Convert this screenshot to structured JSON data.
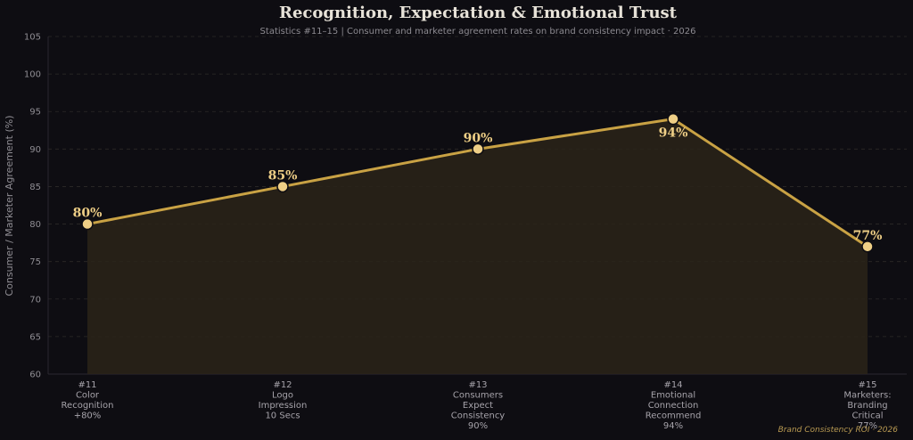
{
  "chart_data": {
    "type": "line",
    "title": "Recognition, Expectation & Emotional Trust",
    "subtitle": "Statistics #11–15 | Consumer and marketer agreement rates on brand consistency impact · 2026",
    "ylabel": "Consumer / Marketer Agreement (%)",
    "ylim": [
      60,
      105
    ],
    "yticks": [
      60,
      65,
      70,
      75,
      80,
      85,
      90,
      95,
      100,
      105
    ],
    "grid": true,
    "categories": [
      [
        "#11",
        "Color",
        "Recognition",
        "+80%"
      ],
      [
        "#12",
        "Logo",
        "Impression",
        "10 Secs"
      ],
      [
        "#13",
        "Consumers",
        "Expect",
        "Consistency",
        "90%"
      ],
      [
        "#14",
        "Emotional",
        "Connection",
        "Recommend",
        "94%"
      ],
      [
        "#15",
        "Marketers:",
        "Branding",
        "Critical",
        "77%"
      ]
    ],
    "values": [
      80,
      85,
      90,
      94,
      77
    ],
    "data_labels": [
      "80%",
      "85%",
      "90%",
      "94%",
      "77%"
    ],
    "colors": {
      "line": "#c9a244",
      "marker": "#efcf86",
      "fill": "#2a2419",
      "grid": "#2c2a28"
    }
  },
  "footer": "Brand Consistency ROI · 2026"
}
